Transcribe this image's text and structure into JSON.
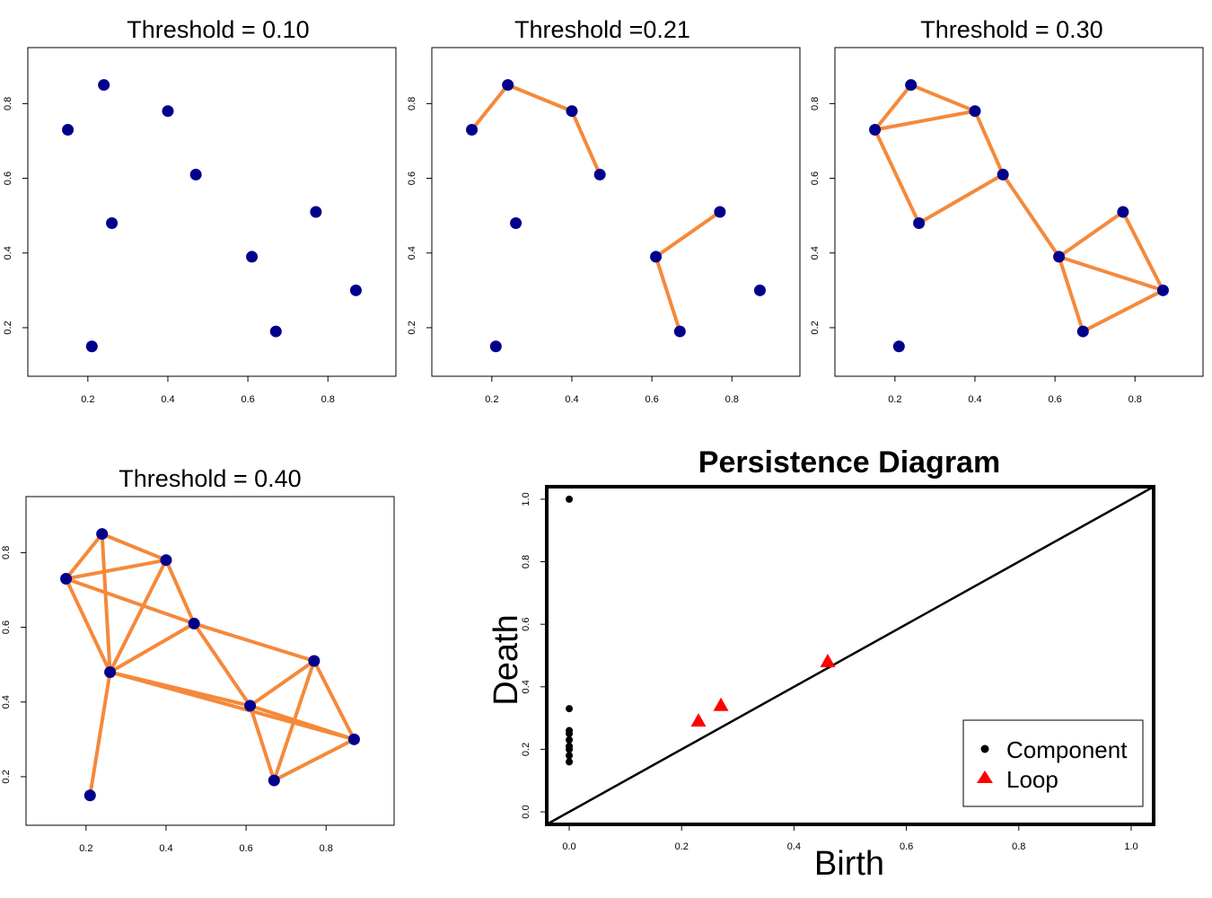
{
  "chart_data": [
    {
      "type": "scatter",
      "title": "Threshold = 0.10",
      "xlabel": "",
      "ylabel": "",
      "xticks": [
        "0.2",
        "0.4",
        "0.6",
        "0.8"
      ],
      "yticks": [
        "0.2",
        "0.4",
        "0.6",
        "0.8"
      ],
      "xlim": [
        0.05,
        0.97
      ],
      "ylim": [
        0.07,
        0.95
      ],
      "points": [
        [
          0.15,
          0.73
        ],
        [
          0.24,
          0.85
        ],
        [
          0.4,
          0.78
        ],
        [
          0.47,
          0.61
        ],
        [
          0.26,
          0.48
        ],
        [
          0.61,
          0.39
        ],
        [
          0.77,
          0.51
        ],
        [
          0.87,
          0.3
        ],
        [
          0.67,
          0.19
        ],
        [
          0.21,
          0.15
        ]
      ],
      "edges": []
    },
    {
      "type": "scatter",
      "title": "Threshold =0.21",
      "xlabel": "",
      "ylabel": "",
      "xticks": [
        "0.2",
        "0.4",
        "0.6",
        "0.8"
      ],
      "yticks": [
        "0.2",
        "0.4",
        "0.6",
        "0.8"
      ],
      "xlim": [
        0.05,
        0.97
      ],
      "ylim": [
        0.07,
        0.95
      ],
      "points": [
        [
          0.15,
          0.73
        ],
        [
          0.24,
          0.85
        ],
        [
          0.4,
          0.78
        ],
        [
          0.47,
          0.61
        ],
        [
          0.26,
          0.48
        ],
        [
          0.61,
          0.39
        ],
        [
          0.77,
          0.51
        ],
        [
          0.87,
          0.3
        ],
        [
          0.67,
          0.19
        ],
        [
          0.21,
          0.15
        ]
      ],
      "edges": [
        [
          0,
          1
        ],
        [
          1,
          2
        ],
        [
          2,
          3
        ],
        [
          5,
          6
        ],
        [
          5,
          8
        ]
      ]
    },
    {
      "type": "scatter",
      "title": "Threshold = 0.30",
      "xlabel": "",
      "ylabel": "",
      "xticks": [
        "0.2",
        "0.4",
        "0.6",
        "0.8"
      ],
      "yticks": [
        "0.2",
        "0.4",
        "0.6",
        "0.8"
      ],
      "xlim": [
        0.05,
        0.97
      ],
      "ylim": [
        0.07,
        0.95
      ],
      "points": [
        [
          0.15,
          0.73
        ],
        [
          0.24,
          0.85
        ],
        [
          0.4,
          0.78
        ],
        [
          0.47,
          0.61
        ],
        [
          0.26,
          0.48
        ],
        [
          0.61,
          0.39
        ],
        [
          0.77,
          0.51
        ],
        [
          0.87,
          0.3
        ],
        [
          0.67,
          0.19
        ],
        [
          0.21,
          0.15
        ]
      ],
      "edges": [
        [
          0,
          1
        ],
        [
          1,
          2
        ],
        [
          0,
          2
        ],
        [
          2,
          3
        ],
        [
          0,
          4
        ],
        [
          4,
          3
        ],
        [
          3,
          5
        ],
        [
          5,
          6
        ],
        [
          5,
          7
        ],
        [
          6,
          7
        ],
        [
          5,
          8
        ],
        [
          8,
          7
        ]
      ]
    },
    {
      "type": "scatter",
      "title": "Threshold = 0.40",
      "xlabel": "",
      "ylabel": "",
      "xticks": [
        "0.2",
        "0.4",
        "0.6",
        "0.8"
      ],
      "yticks": [
        "0.2",
        "0.4",
        "0.6",
        "0.8"
      ],
      "xlim": [
        0.05,
        0.97
      ],
      "ylim": [
        0.07,
        0.95
      ],
      "points": [
        [
          0.15,
          0.73
        ],
        [
          0.24,
          0.85
        ],
        [
          0.4,
          0.78
        ],
        [
          0.47,
          0.61
        ],
        [
          0.26,
          0.48
        ],
        [
          0.61,
          0.39
        ],
        [
          0.77,
          0.51
        ],
        [
          0.87,
          0.3
        ],
        [
          0.67,
          0.19
        ],
        [
          0.21,
          0.15
        ]
      ],
      "edges": [
        [
          0,
          1
        ],
        [
          1,
          2
        ],
        [
          0,
          2
        ],
        [
          1,
          4
        ],
        [
          0,
          4
        ],
        [
          2,
          4
        ],
        [
          2,
          3
        ],
        [
          0,
          3
        ],
        [
          4,
          3
        ],
        [
          3,
          6
        ],
        [
          3,
          5
        ],
        [
          4,
          5
        ],
        [
          5,
          6
        ],
        [
          5,
          7
        ],
        [
          6,
          7
        ],
        [
          5,
          8
        ],
        [
          6,
          8
        ],
        [
          8,
          7
        ],
        [
          4,
          7
        ],
        [
          4,
          9
        ]
      ]
    },
    {
      "type": "scatter",
      "title": "Persistence Diagram",
      "xlabel": "Birth",
      "ylabel": "Death",
      "xticks": [
        "0.0",
        "0.2",
        "0.4",
        "0.6",
        "0.8",
        "1.0"
      ],
      "yticks": [
        "0.0",
        "0.2",
        "0.4",
        "0.6",
        "0.8",
        "1.0"
      ],
      "xlim": [
        -0.04,
        1.04
      ],
      "ylim": [
        -0.04,
        1.04
      ],
      "diagonal": true,
      "series": [
        {
          "name": "Component",
          "marker": "circle",
          "color": "#000000",
          "points": [
            [
              0,
              1.0
            ],
            [
              0,
              0.33
            ],
            [
              0,
              0.26
            ],
            [
              0,
              0.25
            ],
            [
              0,
              0.23
            ],
            [
              0,
              0.21
            ],
            [
              0,
              0.2
            ],
            [
              0,
              0.18
            ],
            [
              0,
              0.16
            ]
          ]
        },
        {
          "name": "Loop",
          "marker": "triangle",
          "color": "#ff0000",
          "points": [
            [
              0.23,
              0.29
            ],
            [
              0.27,
              0.34
            ],
            [
              0.46,
              0.48
            ]
          ]
        }
      ],
      "legend": {
        "position": "bottom-right",
        "entries": [
          "Component",
          "Loop"
        ]
      }
    }
  ],
  "colors": {
    "point": "#00008b",
    "edge": "#f5893a",
    "loop": "#ff0000",
    "component": "#000000"
  }
}
